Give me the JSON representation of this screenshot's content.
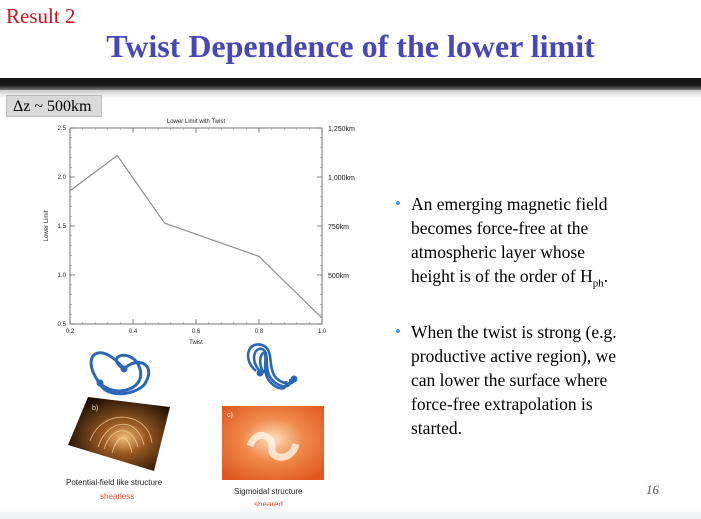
{
  "header": {
    "result_label": "Result 2",
    "title": "Twist Dependence of the lower limit"
  },
  "delta_label": "Δz ~ 500km",
  "chart_data": {
    "type": "line",
    "title": "Lower Limit with Twist",
    "xlabel": "Twist",
    "ylabel": "Lower Limit",
    "xlim": [
      0.2,
      1.0
    ],
    "ylim": [
      0.5,
      2.5
    ],
    "x_ticks": [
      "0.2",
      "0.4",
      "0.6",
      "0.8",
      "1.0"
    ],
    "y_ticks": [
      "0.5",
      "1.0",
      "1.5",
      "2.0",
      "2.5"
    ],
    "y_tick_values": [
      0.5,
      1.0,
      1.5,
      2.0,
      2.5
    ],
    "x_tick_values": [
      0.2,
      0.4,
      0.6,
      0.8,
      1.0
    ],
    "right_axis_labels": [
      {
        "label": "1,250km",
        "value": 2.5
      },
      {
        "label": "1,000km",
        "value": 2.0
      },
      {
        "label": "750km",
        "value": 1.5
      },
      {
        "label": "500km",
        "value": 1.0
      }
    ],
    "series": [
      {
        "x": [
          0.2,
          0.35,
          0.5,
          0.8,
          1.0
        ],
        "y": [
          1.86,
          2.22,
          1.53,
          1.19,
          0.56
        ]
      }
    ],
    "grid": false
  },
  "bullets": [
    {
      "parts": [
        "An emerging magnetic field",
        "becomes force-free at the",
        "atmospheric layer whose",
        "height is of the order of H"
      ],
      "subscript": "ph",
      "suffix": "."
    },
    {
      "lines": [
        "When the twist is strong (e.g.",
        "productive active region), we",
        "can lower the surface where",
        "force-free extrapolation is",
        "started."
      ]
    }
  ],
  "figures": {
    "left": {
      "caption": "Potential-field like structure",
      "sublabel": "shearless",
      "panel_letter": "b)"
    },
    "right": {
      "caption": "Sigmoidal structure",
      "sublabel": "sheared",
      "panel_letter": "c)"
    }
  },
  "colors": {
    "result_red": "#c8151b",
    "title_blue": "#4747b8",
    "bullet_blue": "#5b8fd6",
    "loop_blue": "#2a67b4",
    "sublabel_orange": "#e04a2a"
  },
  "page_number": "16"
}
